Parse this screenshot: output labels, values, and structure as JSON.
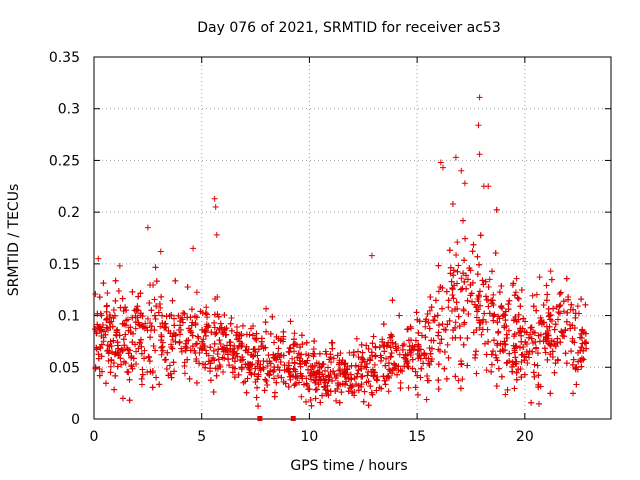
{
  "chart_data": {
    "type": "scatter",
    "title": "Day 076 of 2021, SRMTID for receiver ac53",
    "xlabel": "GPS time / hours",
    "ylabel": "SRMTID / TECUs",
    "xlim": [
      0,
      24
    ],
    "ylim": [
      0,
      0.35
    ],
    "x_ticks": [
      0,
      5,
      10,
      15,
      20
    ],
    "x_tick_labels": [
      "0",
      "5",
      "10",
      "15",
      "20"
    ],
    "y_ticks": [
      0,
      0.05,
      0.1,
      0.15,
      0.2,
      0.25,
      0.3,
      0.35
    ],
    "y_tick_labels": [
      "0",
      "0.05",
      "0.1",
      "0.15",
      "0.2",
      "0.25",
      "0.3",
      "0.35"
    ],
    "grid": true,
    "marker": "plus",
    "color": "#e00000",
    "gap_markers_x": [
      7.7,
      9.25
    ],
    "profile": {
      "x_start": 0.05,
      "x_end": 22.85,
      "n_points": 2600,
      "median": [
        [
          0,
          0.09
        ],
        [
          1,
          0.075
        ],
        [
          3,
          0.085
        ],
        [
          5,
          0.07
        ],
        [
          6,
          0.08
        ],
        [
          7,
          0.055
        ],
        [
          9,
          0.055
        ],
        [
          10,
          0.045
        ],
        [
          12,
          0.04
        ],
        [
          14,
          0.06
        ],
        [
          15.5,
          0.07
        ],
        [
          16.5,
          0.1
        ],
        [
          17.5,
          0.12
        ],
        [
          18.5,
          0.09
        ],
        [
          20,
          0.07
        ],
        [
          21.5,
          0.09
        ],
        [
          22.8,
          0.07
        ]
      ],
      "spread": [
        [
          0,
          0.028
        ],
        [
          3,
          0.03
        ],
        [
          7,
          0.02
        ],
        [
          12,
          0.016
        ],
        [
          15.5,
          0.025
        ],
        [
          17.5,
          0.05
        ],
        [
          19,
          0.03
        ],
        [
          22.8,
          0.025
        ]
      ],
      "spikes": [
        [
          0.2,
          0.155
        ],
        [
          1.2,
          0.148
        ],
        [
          2.5,
          0.185
        ],
        [
          3.1,
          0.162
        ],
        [
          4.6,
          0.165
        ],
        [
          5.6,
          0.213
        ],
        [
          5.65,
          0.205
        ],
        [
          5.7,
          0.178
        ],
        [
          12.9,
          0.158
        ],
        [
          16.1,
          0.248
        ],
        [
          16.2,
          0.243
        ],
        [
          16.8,
          0.253
        ],
        [
          17.05,
          0.24
        ],
        [
          17.9,
          0.311
        ],
        [
          17.85,
          0.284
        ],
        [
          17.9,
          0.256
        ],
        [
          18.1,
          0.225
        ],
        [
          18.3,
          0.225
        ],
        [
          21.2,
          0.143
        ]
      ]
    }
  }
}
